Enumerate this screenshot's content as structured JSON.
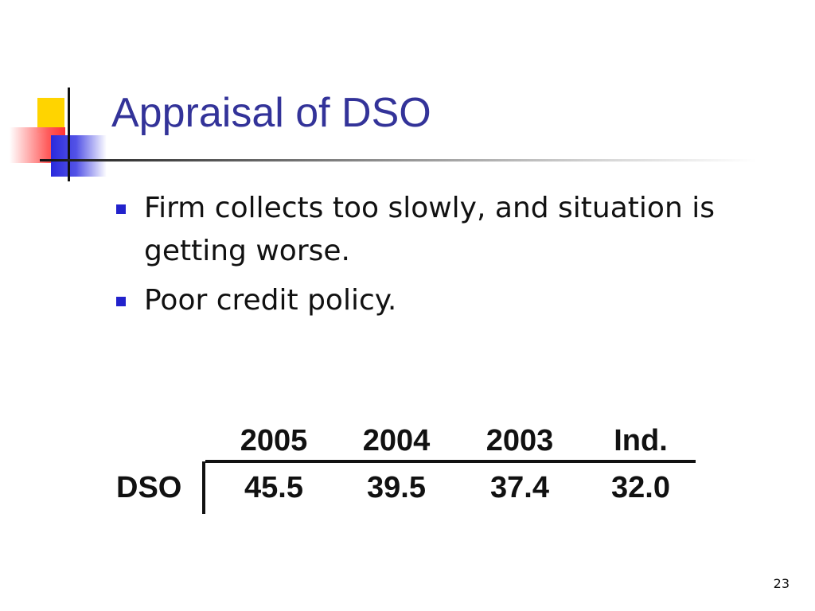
{
  "title": "Appraisal of DSO",
  "bullets": [
    "Firm collects too slowly, and situation is getting worse.",
    "Poor credit policy."
  ],
  "table": {
    "columns": [
      "2005",
      "2004",
      "2003",
      "Ind."
    ],
    "rows": [
      {
        "label": "DSO",
        "values": [
          "45.5",
          "39.5",
          "37.4",
          "32.0"
        ]
      }
    ]
  },
  "slide_number": "23",
  "colors": {
    "title": "#333399",
    "bullet_marker": "#2222cc",
    "logo_yellow": "#ffd400",
    "logo_red": "#ff3333",
    "logo_blue": "#2a2add"
  }
}
